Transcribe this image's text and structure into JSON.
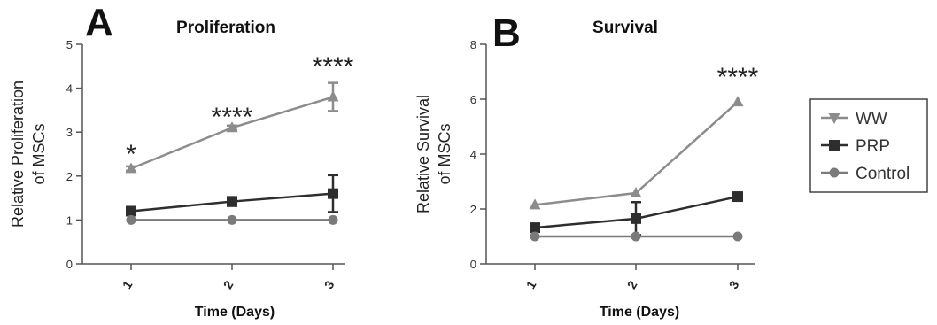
{
  "legend": {
    "entries": [
      {
        "name": "WW",
        "color": "#8c8c8c",
        "marker": "triangle-down"
      },
      {
        "name": "PRP",
        "color": "#2e2e2e",
        "marker": "square"
      },
      {
        "name": "Control",
        "color": "#7a7a7a",
        "marker": "circle"
      }
    ]
  },
  "chart_data": [
    {
      "type": "line",
      "panel_letter": "A",
      "title": "Proliferation",
      "xlabel": "Time (Days)",
      "ylabel": [
        "Relative Proliferation",
        "of MSCs"
      ],
      "x": [
        1,
        2,
        3
      ],
      "ylim": [
        0,
        5
      ],
      "yticks": [
        0,
        1,
        2,
        3,
        4,
        5
      ],
      "series": [
        {
          "name": "WW",
          "values": [
            2.17,
            3.1,
            3.8
          ],
          "errors": [
            0.05,
            0.05,
            0.32
          ],
          "marker": "triangle",
          "color": "#8c8c8c"
        },
        {
          "name": "PRP",
          "values": [
            1.2,
            1.42,
            1.6
          ],
          "errors": [
            0.06,
            0.1,
            0.42
          ],
          "marker": "square",
          "color": "#2e2e2e"
        },
        {
          "name": "Control",
          "values": [
            1.0,
            1.0,
            1.0
          ],
          "errors": [
            0,
            0,
            0
          ],
          "marker": "circle",
          "color": "#7a7a7a"
        }
      ],
      "annotations": [
        {
          "x": 1,
          "text": "*",
          "y": 2.5
        },
        {
          "x": 2,
          "text": "****",
          "y": 3.35
        },
        {
          "x": 3,
          "text": "****",
          "y": 4.5
        }
      ]
    },
    {
      "type": "line",
      "panel_letter": "B",
      "title": "Survival",
      "xlabel": "Time (Days)",
      "ylabel": [
        "Relative Survival",
        "of MSCs"
      ],
      "x": [
        1,
        2,
        3
      ],
      "ylim": [
        0,
        8
      ],
      "yticks": [
        0,
        2,
        4,
        6,
        8
      ],
      "series": [
        {
          "name": "WW",
          "values": [
            2.15,
            2.58,
            5.9
          ],
          "errors": [
            0,
            0,
            0
          ],
          "marker": "triangle",
          "color": "#8c8c8c"
        },
        {
          "name": "PRP",
          "values": [
            1.32,
            1.65,
            2.45
          ],
          "errors": [
            0,
            0.6,
            0
          ],
          "marker": "square",
          "color": "#2e2e2e"
        },
        {
          "name": "Control",
          "values": [
            1.0,
            1.0,
            1.0
          ],
          "errors": [
            0,
            0,
            0
          ],
          "marker": "circle",
          "color": "#7a7a7a"
        }
      ],
      "annotations": [
        {
          "x": 3,
          "text": "****",
          "y": 6.8
        }
      ]
    }
  ]
}
